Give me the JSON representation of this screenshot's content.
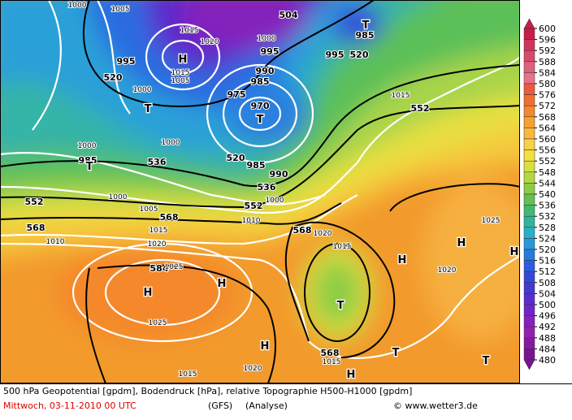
{
  "map": {
    "labels": [
      "1000",
      "1005",
      "1015",
      "1020",
      "H",
      "1015",
      "1005",
      "995",
      "520",
      "1000",
      "T",
      "504",
      "1000",
      "995",
      "990",
      "985",
      "975",
      "970",
      "T",
      "985",
      "T",
      "520",
      "995",
      "1015",
      "552",
      "1000",
      "985",
      "T",
      "536",
      "1000",
      "520",
      "985",
      "990",
      "536",
      "552",
      "1000",
      "552",
      "1000",
      "1005",
      "568",
      "1010",
      "568",
      "1010",
      "1015",
      "1020",
      "568",
      "1020",
      "1015",
      "1025",
      "H",
      "H",
      "1020",
      "H",
      "584",
      "1025",
      "H",
      "H",
      "T",
      "1025",
      "H",
      "568",
      "1015",
      "T",
      "1020",
      "H",
      "1015",
      "T"
    ]
  },
  "colorbar": {
    "ticks": [
      600,
      596,
      592,
      588,
      584,
      580,
      576,
      572,
      568,
      564,
      560,
      556,
      552,
      548,
      544,
      540,
      536,
      532,
      528,
      524,
      520,
      516,
      512,
      508,
      504,
      500,
      496,
      492,
      488,
      484,
      480
    ],
    "colors": [
      "#c81e46",
      "#d0345a",
      "#d84a6a",
      "#e0607a",
      "#e8728a",
      "#ee5a3c",
      "#f07030",
      "#f4882c",
      "#f6a030",
      "#f8b83c",
      "#fad048",
      "#f4e040",
      "#d8e040",
      "#b4d840",
      "#8ccc44",
      "#64c050",
      "#44b870",
      "#30b49c",
      "#28b0c8",
      "#2898d8",
      "#2878e0",
      "#2c5ce0",
      "#3448d8",
      "#4438d0",
      "#5a2ccc",
      "#7024c8",
      "#8420bc",
      "#9420b0",
      "#8818a0",
      "#781490"
    ]
  },
  "footer": {
    "line1": "500 hPa Geopotential [gpdm], Bodendruck [hPa], relative Topographie H500-H1000 [gpdm]",
    "date": "Mittwoch, 03-11-2010  00 UTC",
    "model": "(GFS)",
    "run": "(Analyse)",
    "credit": "© www.wetter3.de"
  }
}
